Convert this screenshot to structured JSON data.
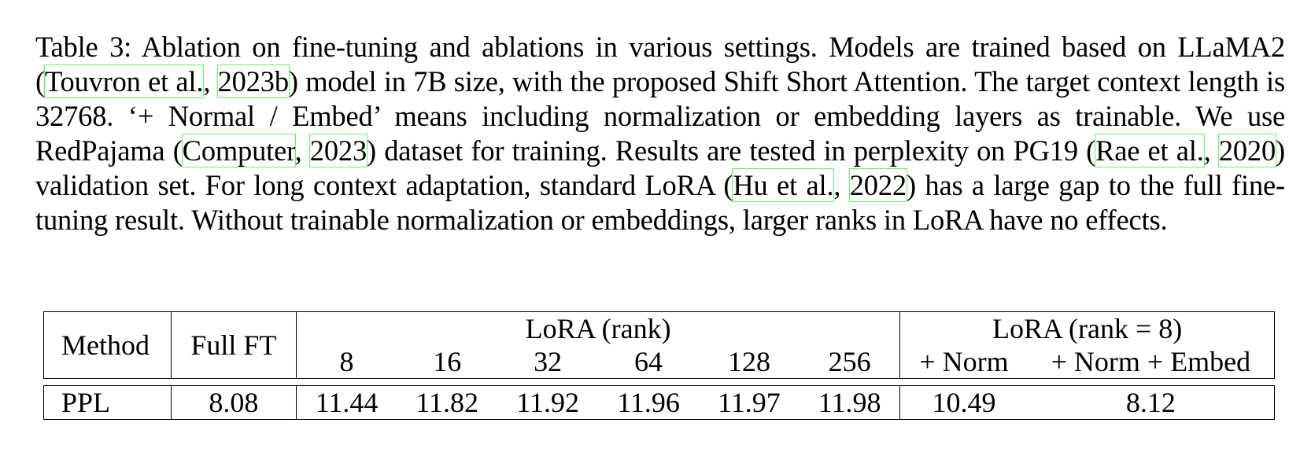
{
  "caption": {
    "text_1": "Table 3: Ablation on fine-tuning and ablations in various settings. Models are trained based on LLaMA2 (",
    "cite_1_author": "Touvron et al.",
    "sep_1": ", ",
    "cite_1_year": "2023b",
    "text_2": ") model in 7B size, with the proposed Shift Short Attention. The target context length is 32768. ‘+ Normal / Embed’ means including normalization or embedding layers as trainable. We use RedPajama (",
    "cite_2_author": "Computer",
    "sep_2": ", ",
    "cite_2_year": "2023",
    "text_3": ") dataset for training. Results are tested in perplexity on PG19 (",
    "cite_3_author": "Rae et al.",
    "sep_3": ", ",
    "cite_3_year": "2020",
    "text_4": ") validation set. For long context adaptation, standard LoRA (",
    "cite_4_author": "Hu et al.",
    "sep_4": ", ",
    "cite_4_year": "2022",
    "text_5": ") has a large gap to the full fine-tuning result. Without trainable normalization or embeddings, larger ranks in LoRA have no effects."
  },
  "table": {
    "method_header": "Method",
    "full_ft_header": "Full FT",
    "lora_rank_header": "LoRA (rank)",
    "lora_rank8_header": "LoRA (rank = 8)",
    "ranks": [
      "8",
      "16",
      "32",
      "64",
      "128",
      "256"
    ],
    "extra_cols": [
      "+ Norm",
      "+ Norm + Embed"
    ],
    "row": {
      "label": "PPL",
      "full_ft": "8.08",
      "lora": [
        "11.44",
        "11.82",
        "11.92",
        "11.96",
        "11.97",
        "11.98"
      ],
      "extra": [
        "10.49",
        "8.12"
      ]
    }
  }
}
